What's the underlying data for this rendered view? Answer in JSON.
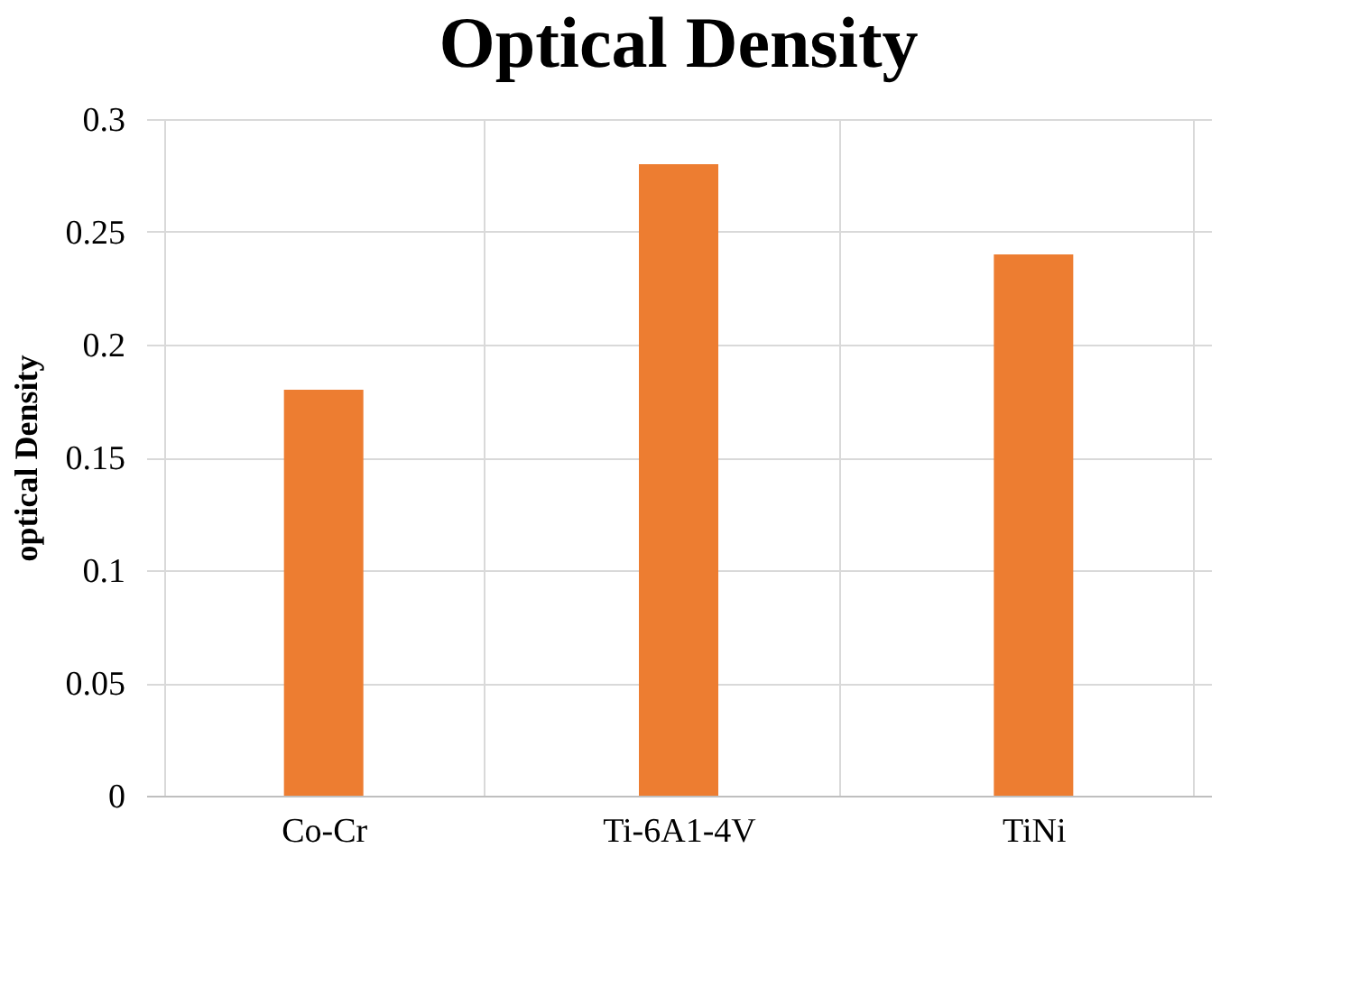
{
  "chart_data": {
    "type": "bar",
    "title": "Optical Density",
    "ylabel": "optical Density",
    "categories": [
      "Co-Cr",
      "Ti-6A1-4V",
      "TiNi"
    ],
    "values": [
      0.18,
      0.28,
      0.24
    ],
    "color": "#ed7d31",
    "ylim": [
      0,
      0.3
    ],
    "yticks": [
      0,
      0.05,
      0.1,
      0.15,
      0.2,
      0.25,
      0.3
    ],
    "grid": true
  }
}
